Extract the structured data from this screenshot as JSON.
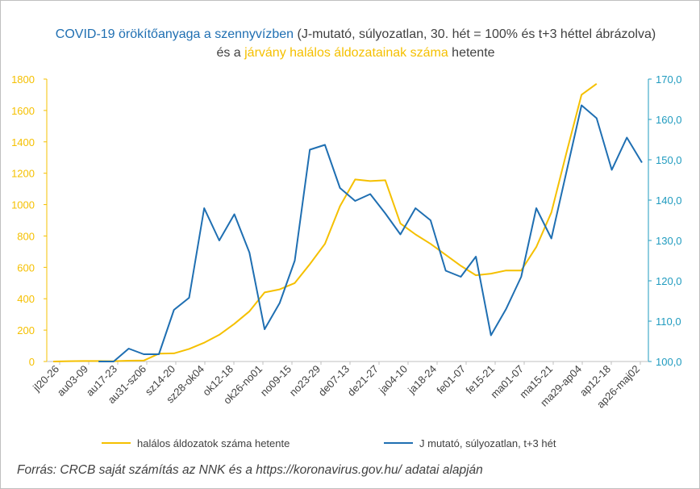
{
  "title": {
    "part1": "COVID-19 örökítőanyaga a szennyvízben",
    "part2": " (J-mutató, súlyozatlan, 30. hét = 100% és t+3 héttel ábrázolva) és a ",
    "part3": "járvány halálos áldozatainak száma",
    "part4": " hetente"
  },
  "source": "Forrás: CRCB saját számítás az NNK és a https://koronavirus.gov.hu/ adatai alapján",
  "colors": {
    "deaths": "#f5c000",
    "jindex": "#1f6fb2",
    "right_axis": "#1f9bbf"
  },
  "chart_data": {
    "type": "line",
    "x_labels": [
      "jl20-26",
      "au03-09",
      "au17-23",
      "au31-sz06",
      "sz14-20",
      "sz28-ok04",
      "ok12-18",
      "ok26-no01",
      "no09-15",
      "no23-29",
      "de07-13",
      "de21-27",
      "ja04-10",
      "ja18-24",
      "fe01-07",
      "fe15-21",
      "ma01-07",
      "ma15-21",
      "ma29-ap04",
      "ap12-18",
      "ap26-maj02"
    ],
    "left_axis": {
      "min": 0,
      "max": 1800,
      "ticks": [
        "0",
        "200",
        "400",
        "600",
        "800",
        "1000",
        "1200",
        "1400",
        "1600",
        "1800"
      ]
    },
    "right_axis": {
      "min": 100,
      "max": 170,
      "ticks": [
        "100,0",
        "110,0",
        "120,0",
        "130,0",
        "140,0",
        "150,0",
        "160,0",
        "170,0"
      ]
    },
    "series": [
      {
        "name": "halálos áldozatok száma hetente",
        "axis": "left",
        "values": [
          0,
          2,
          3,
          3,
          2,
          5,
          6,
          50,
          52,
          80,
          120,
          170,
          240,
          320,
          440,
          460,
          500,
          620,
          750,
          990,
          1160,
          1150,
          1155,
          880,
          810,
          750,
          680,
          610,
          550,
          560,
          580,
          580,
          730,
          950,
          1330,
          1700,
          1770
        ]
      },
      {
        "name": "J mutató, súlyozatlan, t+3 hét",
        "axis": "right",
        "values": [
          null,
          null,
          null,
          100,
          100,
          103.2,
          101.8,
          101.8,
          112.8,
          115.8,
          138,
          130,
          136.5,
          127,
          108,
          114.5,
          125,
          152.5,
          153.7,
          143,
          139.8,
          141.5,
          136.7,
          131.5,
          138,
          135,
          122.5,
          121,
          126,
          106.5,
          113,
          121,
          138,
          130.5,
          147,
          163.5,
          160.3,
          147.5,
          155.5,
          149.3
        ]
      }
    ]
  }
}
